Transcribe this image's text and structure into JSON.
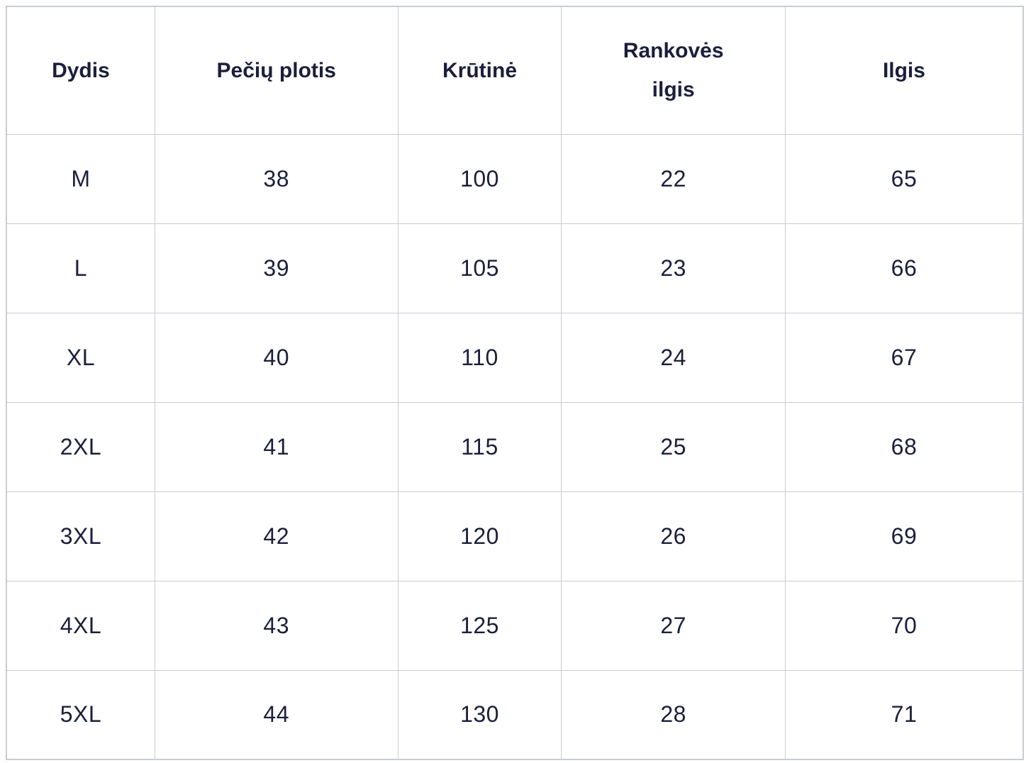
{
  "colors": {
    "text": "#1b1f3c",
    "border": "#c9ccd4",
    "background": "#ffffff"
  },
  "table": {
    "columns": [
      "Dydis",
      "Pečių plotis",
      "Krūtinė",
      "Rankovės ilgis",
      "Ilgis"
    ],
    "rows": [
      [
        "M",
        "38",
        "100",
        "22",
        "65"
      ],
      [
        "L",
        "39",
        "105",
        "23",
        "66"
      ],
      [
        "XL",
        "40",
        "110",
        "24",
        "67"
      ],
      [
        "2XL",
        "41",
        "115",
        "25",
        "68"
      ],
      [
        "3XL",
        "42",
        "120",
        "26",
        "69"
      ],
      [
        "4XL",
        "43",
        "125",
        "27",
        "70"
      ],
      [
        "5XL",
        "44",
        "130",
        "28",
        "71"
      ]
    ]
  },
  "chart_data": {
    "type": "table",
    "title": "",
    "columns": [
      "Dydis",
      "Pečių plotis",
      "Krūtinė",
      "Rankovės ilgis",
      "Ilgis"
    ],
    "rows": [
      {
        "Dydis": "M",
        "Pečių plotis": 38,
        "Krūtinė": 100,
        "Rankovės ilgis": 22,
        "Ilgis": 65
      },
      {
        "Dydis": "L",
        "Pečių plotis": 39,
        "Krūtinė": 105,
        "Rankovės ilgis": 23,
        "Ilgis": 66
      },
      {
        "Dydis": "XL",
        "Pečių plotis": 40,
        "Krūtinė": 110,
        "Rankovės ilgis": 24,
        "Ilgis": 67
      },
      {
        "Dydis": "2XL",
        "Pečių plotis": 41,
        "Krūtinė": 115,
        "Rankovės ilgis": 25,
        "Ilgis": 68
      },
      {
        "Dydis": "3XL",
        "Pečių plotis": 42,
        "Krūtinė": 120,
        "Rankovės ilgis": 26,
        "Ilgis": 69
      },
      {
        "Dydis": "4XL",
        "Pečių plotis": 43,
        "Krūtinė": 125,
        "Rankovės ilgis": 27,
        "Ilgis": 70
      },
      {
        "Dydis": "5XL",
        "Pečių plotis": 44,
        "Krūtinė": 130,
        "Rankovės ilgis": 28,
        "Ilgis": 71
      }
    ]
  }
}
